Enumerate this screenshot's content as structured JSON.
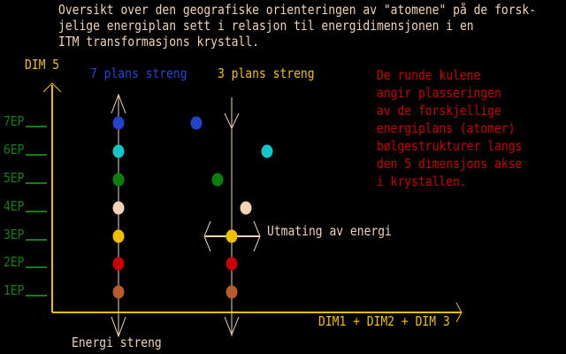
{
  "title_lines": [
    "Oversikt over den geografiske orienteringen av \"atomene\" på de forsk-",
    "jelige energiplan sett i relasjon til energidimensjonen i en",
    "ITM transformasjons krystall."
  ],
  "y_axis_label": "DIM 5",
  "x_axis_label": "DIM1 + DIM2 + DIM 3",
  "string_7_label": "7 plans streng",
  "string_3_label": "3 plans streng",
  "energy_string_label": "Energi streng",
  "output_label": "Utmating av energi",
  "note_lines": [
    "De runde kulene",
    "angir plasseringen",
    "av de forskjellige",
    "energiplans (atomer)",
    "bølgestrukturer langs",
    "den 5 dimensjons akse",
    "i krystallen."
  ],
  "levels": [
    "7EP",
    "6EP",
    "5EP",
    "4EP",
    "3EP",
    "2EP",
    "1EP"
  ],
  "colors": {
    "7EP": "#2244cc",
    "6EP": "#10c8c8",
    "5EP": "#0a800a",
    "4EP": "#f2d3b3",
    "3EP": "#f0c000",
    "2EP": "#cc0000",
    "1EP": "#b85a2a",
    "axis": "#f0c000",
    "string": "#f2d3b3"
  }
}
